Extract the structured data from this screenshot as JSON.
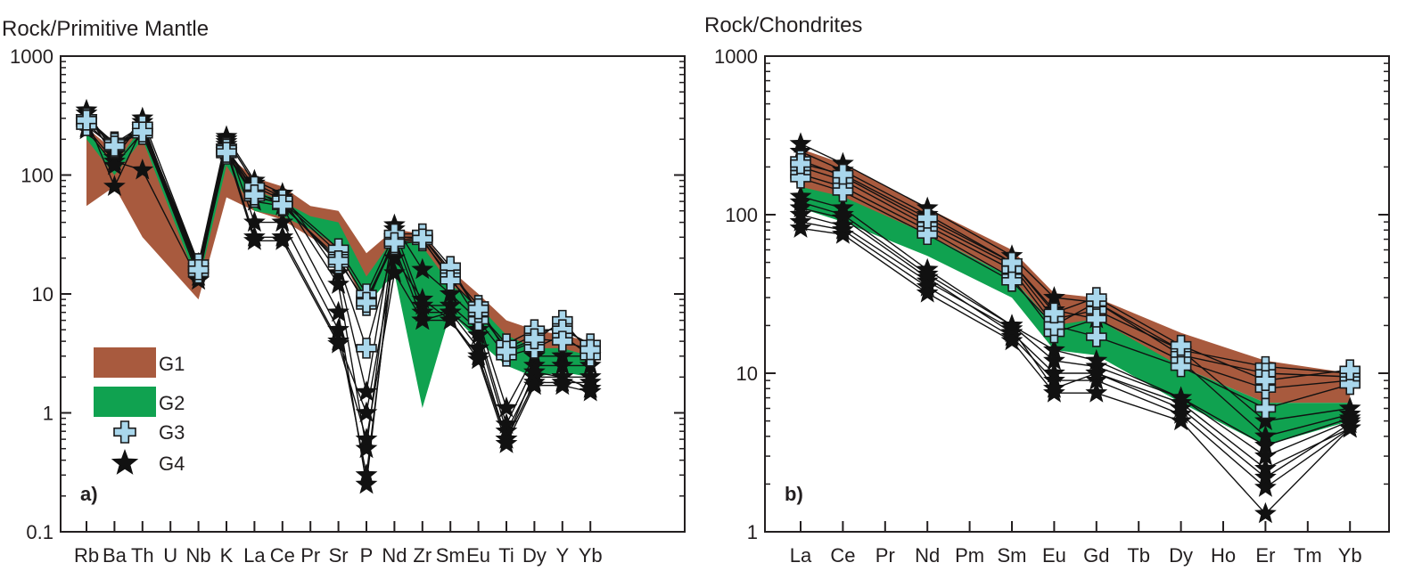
{
  "colors": {
    "G1": "#a85a3e",
    "G2": "#10a250",
    "G3": "#a9d7ec",
    "G4": "#111111",
    "axis": "#231f20"
  },
  "legend": {
    "items": [
      {
        "label": "G1",
        "marker": "brown-band"
      },
      {
        "label": "G2",
        "marker": "green-band"
      },
      {
        "label": "G3",
        "marker": "cross-icon"
      },
      {
        "label": "G4",
        "marker": "star-icon"
      }
    ]
  },
  "chart_data": [
    {
      "type": "line",
      "panel": "a)",
      "ylabel": "Rock/Primitive Mantle",
      "yscale": "log",
      "ylim": [
        0.1,
        1000
      ],
      "ytick_labels": [
        "1000",
        "100",
        "10",
        "1",
        "0.1"
      ],
      "categories": [
        "Rb",
        "Ba",
        "Th",
        "U",
        "Nb",
        "K",
        "La",
        "Ce",
        "Pr",
        "Sr",
        "P",
        "Nd",
        "Zr",
        "Sm",
        "Eu",
        "Ti",
        "Dy",
        "Y",
        "Yb"
      ],
      "bands": [
        {
          "name": "G1",
          "upper": [
            [
              0,
              250
            ],
            [
              1,
              160
            ],
            [
              2,
              270
            ],
            [
              4,
              17
            ],
            [
              5,
              150
            ],
            [
              6,
              95
            ],
            [
              7,
              80
            ],
            [
              8,
              55
            ],
            [
              9,
              50
            ],
            [
              10,
              22
            ],
            [
              11,
              35
            ],
            [
              12,
              32
            ],
            [
              13,
              16
            ],
            [
              14,
              10
            ],
            [
              15,
              6
            ],
            [
              16,
              5
            ],
            [
              17,
              4.5
            ],
            [
              18,
              4
            ]
          ],
          "lower": [
            [
              0,
              55
            ],
            [
              1,
              80
            ],
            [
              2,
              30
            ],
            [
              4,
              9
            ],
            [
              5,
              65
            ],
            [
              6,
              50
            ],
            [
              7,
              42
            ],
            [
              8,
              30
            ],
            [
              9,
              22
            ],
            [
              10,
              8
            ],
            [
              11,
              18
            ],
            [
              12,
              16
            ],
            [
              13,
              9
            ],
            [
              14,
              6
            ],
            [
              15,
              3
            ],
            [
              16,
              2.8
            ],
            [
              17,
              2.8
            ],
            [
              18,
              2.5
            ]
          ]
        },
        {
          "name": "G2",
          "upper": [
            [
              0,
              240
            ],
            [
              1,
              120
            ],
            [
              2,
              260
            ],
            [
              4,
              17
            ],
            [
              5,
              140
            ],
            [
              6,
              75
            ],
            [
              7,
              60
            ],
            [
              8,
              45
            ],
            [
              9,
              40
            ],
            [
              10,
              14
            ],
            [
              11,
              30
            ],
            [
              12,
              25
            ],
            [
              13,
              12
            ],
            [
              14,
              8
            ],
            [
              15,
              4.5
            ],
            [
              16,
              3.5
            ],
            [
              17,
              3.5
            ],
            [
              18,
              3
            ]
          ],
          "lower": [
            [
              0,
              200
            ],
            [
              1,
              100
            ],
            [
              2,
              200
            ],
            [
              4,
              12
            ],
            [
              5,
              120
            ],
            [
              6,
              50
            ],
            [
              7,
              45
            ],
            [
              8,
              35
            ],
            [
              9,
              25
            ],
            [
              10,
              8
            ],
            [
              11,
              15
            ],
            [
              12,
              1.1
            ],
            [
              13,
              7
            ],
            [
              14,
              4
            ],
            [
              15,
              2.5
            ],
            [
              16,
              2
            ],
            [
              17,
              2.2
            ],
            [
              18,
              2
            ]
          ]
        }
      ],
      "series": [
        {
          "name": "G3",
          "lines": [
            [
              300,
              180,
              250,
              null,
              17,
              170,
              70,
              60,
              null,
              22,
              9,
              28,
              30,
              16,
              7,
              3.5,
              4.5,
              5.5,
              3.5
            ],
            [
              280,
              190,
              220,
              null,
              16,
              160,
              75,
              55,
              null,
              20,
              8,
              30,
              30,
              15,
              8,
              3.2,
              4,
              6,
              3.2
            ],
            [
              260,
              170,
              240,
              null,
              15,
              150,
              65,
              58,
              null,
              18,
              3.5,
              26,
              28,
              14,
              6,
              3,
              3.5,
              4.5,
              3
            ],
            [
              300,
              185,
              260,
              null,
              18,
              165,
              80,
              62,
              null,
              24,
              10,
              32,
              32,
              17,
              7,
              3.8,
              5,
              5,
              3.8
            ],
            [
              290,
              175,
              230,
              null,
              16,
              155,
              68,
              56,
              null,
              19,
              8.5,
              27,
              29,
              13,
              7.5,
              3.3,
              4.2,
              4,
              3.4
            ]
          ]
        },
        {
          "name": "G4",
          "lines": [
            [
              350,
              150,
              300,
              null,
              18,
              210,
              90,
              70,
              null,
              15,
              1.5,
              38,
              16,
              10,
              6,
              1.1,
              3,
              3,
              3
            ],
            [
              300,
              80,
              250,
              null,
              16,
              200,
              85,
              65,
              null,
              12,
              0.5,
              35,
              8,
              8,
              5,
              0.8,
              2.5,
              2.5,
              2.5
            ],
            [
              330,
              140,
              280,
              null,
              15,
              180,
              60,
              55,
              null,
              7,
              0.25,
              30,
              7,
              7,
              4.5,
              0.7,
              2,
              2,
              2
            ],
            [
              250,
              130,
              110,
              null,
              13,
              190,
              40,
              40,
              null,
              5,
              0.3,
              25,
              6,
              7,
              3.5,
              0.6,
              1.8,
              1.8,
              1.8
            ],
            [
              280,
              160,
              260,
              null,
              17,
              170,
              30,
              30,
              null,
              4,
              1,
              20,
              9,
              6,
              3,
              0.6,
              2.2,
              2,
              1.6
            ],
            [
              240,
              120,
              230,
              null,
              14,
              160,
              28,
              28,
              null,
              3.8,
              0.6,
              15,
              6,
              6,
              2.8,
              0.55,
              1.7,
              1.7,
              1.5
            ]
          ]
        }
      ]
    },
    {
      "type": "line",
      "panel": "b)",
      "ylabel": "Rock/Chondrites",
      "yscale": "log",
      "ylim": [
        1,
        1000
      ],
      "ytick_labels": [
        "1000",
        "100",
        "10",
        "1"
      ],
      "categories": [
        "La",
        "Ce",
        "Pr",
        "Nd",
        "Pm",
        "Sm",
        "Eu",
        "Gd",
        "Tb",
        "Dy",
        "Ho",
        "Er",
        "Tm",
        "Yb"
      ],
      "bands": [
        {
          "name": "G1",
          "upper": [
            [
              0,
              260
            ],
            [
              1,
              210
            ],
            [
              3,
              110
            ],
            [
              5,
              60
            ],
            [
              6,
              32
            ],
            [
              7,
              30
            ],
            [
              9,
              18
            ],
            [
              11,
              12
            ],
            [
              13,
              10
            ]
          ],
          "lower": [
            [
              0,
              140
            ],
            [
              1,
              120
            ],
            [
              3,
              75
            ],
            [
              5,
              40
            ],
            [
              6,
              20
            ],
            [
              7,
              20
            ],
            [
              9,
              11
            ],
            [
              11,
              6.5
            ],
            [
              13,
              6.5
            ]
          ]
        },
        {
          "name": "G2",
          "upper": [
            [
              0,
              150
            ],
            [
              1,
              130
            ],
            [
              3,
              75
            ],
            [
              5,
              40
            ],
            [
              6,
              20
            ],
            [
              7,
              22
            ],
            [
              9,
              11
            ],
            [
              11,
              6.5
            ],
            [
              13,
              6.5
            ]
          ],
          "lower": [
            [
              0,
              110
            ],
            [
              1,
              90
            ],
            [
              3,
              55
            ],
            [
              5,
              30
            ],
            [
              6,
              14
            ],
            [
              7,
              13
            ],
            [
              9,
              6.5
            ],
            [
              11,
              3.5
            ],
            [
              13,
              5
            ]
          ]
        }
      ],
      "series": [
        {
          "name": "G3",
          "lines": [
            [
              220,
              175,
              null,
              90,
              null,
              48,
              22,
              25,
              null,
              14,
              null,
              11,
              null,
              10
            ],
            [
              200,
              165,
              null,
              85,
              null,
              45,
              20,
              28,
              null,
              13,
              null,
              10,
              null,
              9.5
            ],
            [
              180,
              150,
              null,
              80,
              null,
              40,
              18,
              22,
              null,
              12,
              null,
              8,
              null,
              9
            ],
            [
              170,
              140,
              null,
              75,
              null,
              38,
              20,
              17,
              null,
              11,
              null,
              6,
              null,
              8.5
            ],
            [
              210,
              180,
              null,
              95,
              null,
              50,
              24,
              30,
              null,
              15,
              null,
              9,
              null,
              10.5
            ]
          ]
        },
        {
          "name": "G4",
          "lines": [
            [
              280,
              210,
              null,
              110,
              null,
              55,
              30,
              28,
              null,
              14,
              null,
              5,
              null,
              6
            ],
            [
              250,
              190,
              null,
              100,
              null,
              50,
              25,
              22,
              null,
              12,
              null,
              4,
              null,
              5.5
            ],
            [
              130,
              110,
              null,
              45,
              null,
              20,
              12,
              11,
              null,
              7,
              null,
              3,
              null,
              5
            ],
            [
              110,
              95,
              null,
              40,
              null,
              18,
              10,
              10,
              null,
              6.5,
              null,
              2.5,
              null,
              4.5
            ],
            [
              90,
              80,
              null,
              35,
              null,
              17,
              9,
              9,
              null,
              5.5,
              null,
              1.9,
              null,
              4.5
            ],
            [
              82,
              75,
              null,
              32,
              null,
              16,
              7.5,
              7.5,
              null,
              5,
              null,
              1.3,
              null,
              4.5
            ],
            [
              100,
              85,
              null,
              38,
              null,
              19,
              8,
              10,
              null,
              6,
              null,
              2.2,
              null,
              4.8
            ],
            [
              120,
              100,
              null,
              42,
              null,
              20,
              14,
              12,
              null,
              7,
              null,
              3.5,
              null,
              5.2
            ]
          ]
        }
      ]
    }
  ]
}
